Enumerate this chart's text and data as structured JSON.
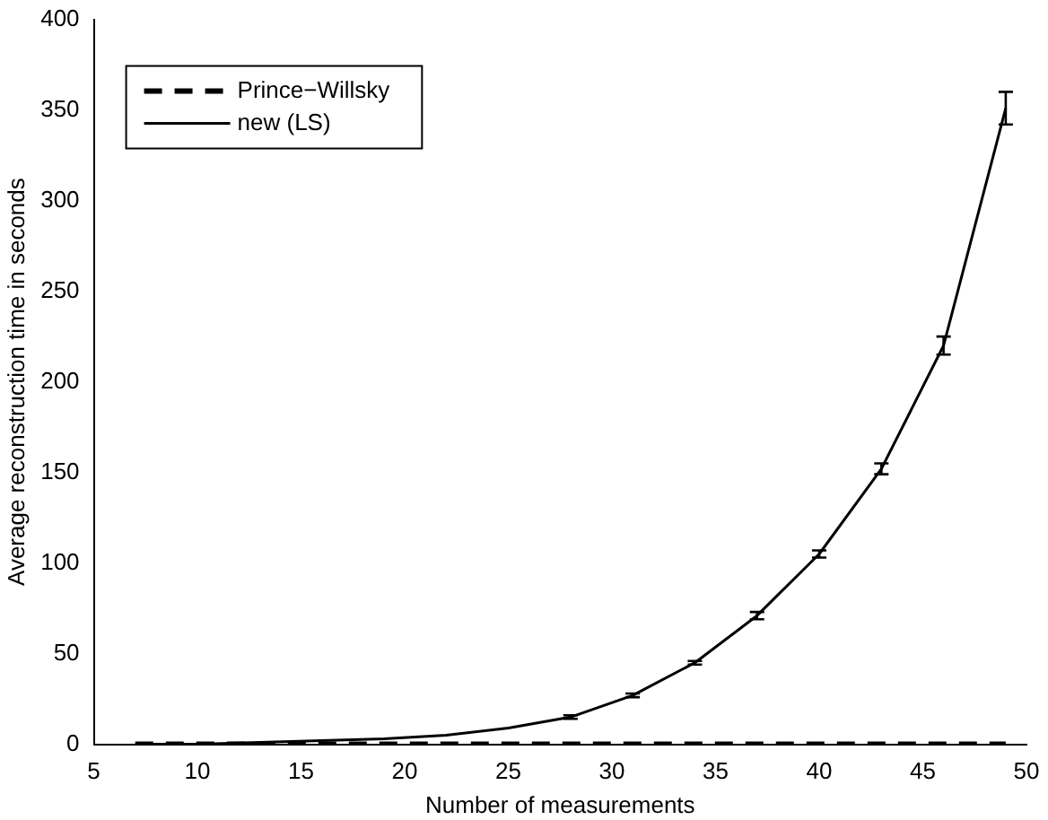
{
  "chart_data": {
    "type": "line",
    "xlabel": "Number of measurements",
    "ylabel": "Average reconstruction time in seconds",
    "x": [
      7,
      10,
      13,
      16,
      19,
      22,
      25,
      28,
      31,
      34,
      37,
      40,
      43,
      46,
      49
    ],
    "series": [
      {
        "name": "Prince−Willsky",
        "color": "#000000",
        "line_style": "dashed",
        "values": [
          0,
          0,
          0,
          0,
          0,
          0,
          0,
          0,
          0,
          0,
          0,
          0,
          0,
          0,
          0
        ]
      },
      {
        "name": "new (LS)",
        "color": "#000000",
        "line_style": "solid",
        "values": [
          0,
          0,
          1,
          2,
          3,
          5,
          9,
          15,
          27,
          45,
          71,
          105,
          152,
          220,
          351
        ],
        "errors": [
          null,
          null,
          null,
          null,
          null,
          null,
          null,
          1,
          1,
          1,
          2,
          2,
          3,
          5,
          9
        ]
      }
    ],
    "xlim": [
      5,
      50
    ],
    "xticks": [
      5,
      10,
      15,
      20,
      25,
      30,
      35,
      40,
      45,
      50
    ],
    "ylim": [
      0,
      400
    ],
    "yticks": [
      0,
      50,
      100,
      150,
      200,
      250,
      300,
      350,
      400
    ],
    "grid": false,
    "legend": "top left",
    "marker": "none"
  }
}
